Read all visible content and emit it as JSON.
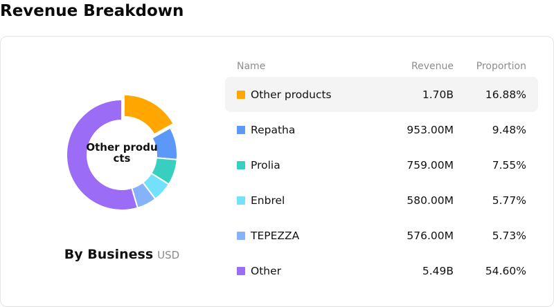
{
  "page": {
    "title": "Revenue Breakdown"
  },
  "panel": {
    "center_label": "Other products",
    "subtitle": "By Business",
    "unit": "USD"
  },
  "table": {
    "headers": {
      "name": "Name",
      "revenue": "Revenue",
      "proportion": "Proportion"
    },
    "rows": [
      {
        "name": "Other products",
        "revenue": "1.70B",
        "proportion": "16.88%",
        "color": "#ffa600",
        "highlight": true
      },
      {
        "name": "Repatha",
        "revenue": "953.00M",
        "proportion": "9.48%",
        "color": "#5b98f7"
      },
      {
        "name": "Prolia",
        "revenue": "759.00M",
        "proportion": "7.55%",
        "color": "#38cfc0"
      },
      {
        "name": "Enbrel",
        "revenue": "580.00M",
        "proportion": "5.77%",
        "color": "#73e1f9"
      },
      {
        "name": "TEPEZZA",
        "revenue": "576.00M",
        "proportion": "5.73%",
        "color": "#86b2fa"
      },
      {
        "name": "Other",
        "revenue": "5.49B",
        "proportion": "54.60%",
        "color": "#9b6cf5"
      }
    ]
  },
  "chart_data": {
    "type": "pie",
    "subtype": "donut",
    "unit": "USD",
    "highlighted": "Other products",
    "slices": [
      {
        "name": "Other products",
        "value": 16.88,
        "color": "#ffa600"
      },
      {
        "name": "Repatha",
        "value": 9.48,
        "color": "#5b98f7"
      },
      {
        "name": "Prolia",
        "value": 7.55,
        "color": "#38cfc0"
      },
      {
        "name": "Enbrel",
        "value": 5.77,
        "color": "#73e1f9"
      },
      {
        "name": "TEPEZZA",
        "value": 5.73,
        "color": "#86b2fa"
      },
      {
        "name": "Other",
        "value": 54.6,
        "color": "#9b6cf5"
      }
    ]
  }
}
